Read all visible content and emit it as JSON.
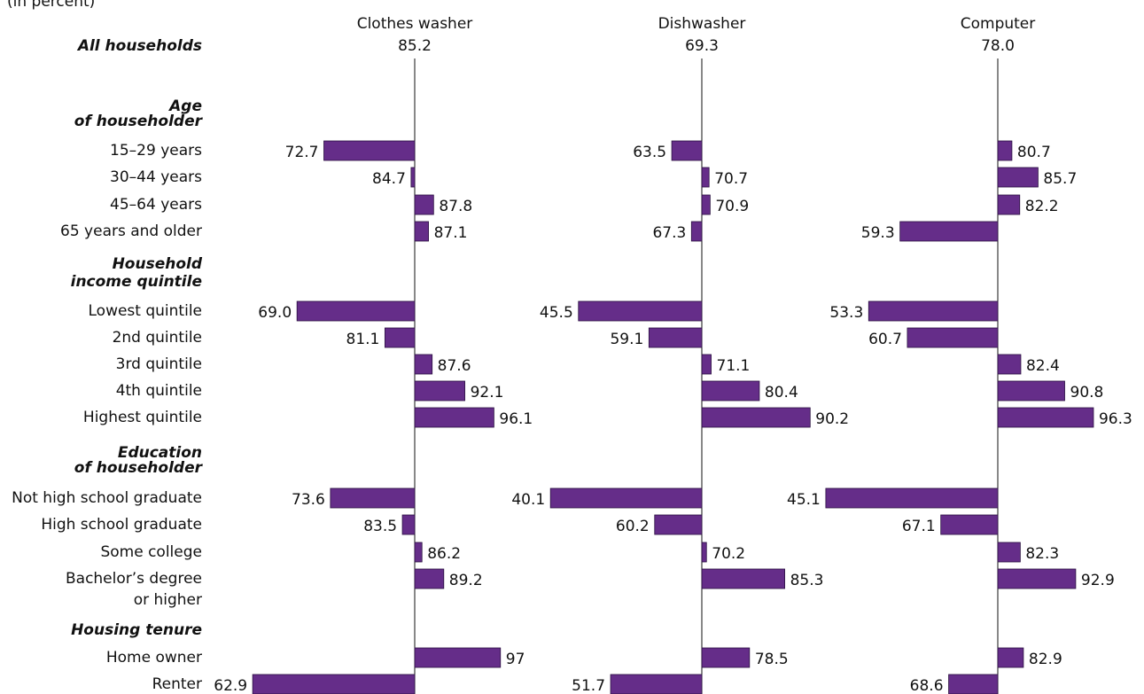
{
  "chart_data": {
    "type": "diverging-bar",
    "subtitle": "(in percent)",
    "all_label": "All households",
    "groups": [
      {
        "title": [
          "Age",
          "of householder"
        ],
        "categories": [
          "15–29 years",
          "30–44 years",
          "45–64 years",
          "65 years and older"
        ]
      },
      {
        "title": [
          "Household",
          "income quintile"
        ],
        "categories": [
          "Lowest quintile",
          "2nd quintile",
          "3rd quintile",
          "4th quintile",
          "Highest quintile"
        ]
      },
      {
        "title": [
          "Education",
          "of householder"
        ],
        "categories": [
          "Not high school graduate",
          "High school graduate",
          "Some college",
          [
            "Bachelor’s degree",
            "or higher"
          ]
        ]
      },
      {
        "title": [
          "Housing tenure"
        ],
        "categories": [
          "Home owner",
          "Renter"
        ]
      }
    ],
    "series": [
      {
        "name": "Clothes washer",
        "color": "#652d89",
        "baseline": 85.2,
        "baseline_label": "85.2",
        "values": [
          [
            72.7,
            84.7,
            87.8,
            87.1
          ],
          [
            69.0,
            81.1,
            87.6,
            92.1,
            96.1
          ],
          [
            73.6,
            83.5,
            86.2,
            89.2
          ],
          [
            97,
            62.9
          ]
        ],
        "value_labels": [
          [
            "72.7",
            "84.7",
            "87.8",
            "87.1"
          ],
          [
            "69.0",
            "81.1",
            "87.6",
            "92.1",
            "96.1"
          ],
          [
            "73.6",
            "83.5",
            "86.2",
            "89.2"
          ],
          [
            "97",
            "62.9"
          ]
        ]
      },
      {
        "name": "Dishwasher",
        "color": "#652d89",
        "baseline": 69.3,
        "baseline_label": "69.3",
        "values": [
          [
            63.5,
            70.7,
            70.9,
            67.3
          ],
          [
            45.5,
            59.1,
            71.1,
            80.4,
            90.2
          ],
          [
            40.1,
            60.2,
            70.2,
            85.3
          ],
          [
            78.5,
            51.7
          ]
        ],
        "value_labels": [
          [
            "63.5",
            "70.7",
            "70.9",
            "67.3"
          ],
          [
            "45.5",
            "59.1",
            "71.1",
            "80.4",
            "90.2"
          ],
          [
            "40.1",
            "60.2",
            "70.2",
            "85.3"
          ],
          [
            "78.5",
            "51.7"
          ]
        ]
      },
      {
        "name": "Computer",
        "color": "#652d89",
        "baseline": 78.0,
        "baseline_label": "78.0",
        "values": [
          [
            80.7,
            85.7,
            82.2,
            59.3
          ],
          [
            53.3,
            60.7,
            82.4,
            90.8,
            96.3
          ],
          [
            45.1,
            67.1,
            82.3,
            92.9
          ],
          [
            82.9,
            68.6
          ]
        ],
        "value_labels": [
          [
            "80.7",
            "85.7",
            "82.2",
            "59.3"
          ],
          [
            "53.3",
            "60.7",
            "82.4",
            "90.8",
            "96.3"
          ],
          [
            "45.1",
            "67.1",
            "82.3",
            "92.9"
          ],
          [
            "82.9",
            "68.6"
          ]
        ]
      }
    ]
  }
}
